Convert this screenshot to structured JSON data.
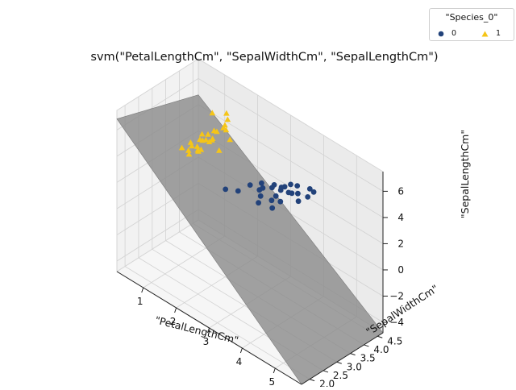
{
  "chart_data": {
    "type": "scatter",
    "title": "svm(\"PetalLengthCm\", \"SepalWidthCm\", \"SepalLengthCm\")",
    "projection": "3d",
    "xlabel": "\"PetalLengthCm\"",
    "ylabel": "\"SepalWidthCm\"",
    "zlabel": "\"SepalLengthCm\"",
    "xlim": [
      0.2,
      5.8
    ],
    "ylim": [
      1.7,
      4.7
    ],
    "zlim": [
      -4.8,
      7.5
    ],
    "xticks": [
      "1",
      "2",
      "3",
      "4",
      "5"
    ],
    "yticks": [
      "2.0",
      "2.5",
      "3.0",
      "3.5",
      "4.0",
      "4.5"
    ],
    "zticks": [
      "−4",
      "−2",
      "0",
      "2",
      "4",
      "6"
    ],
    "grid": true,
    "legend": {
      "title": "\"Species_0\"",
      "placement": "top-right outside",
      "entries": [
        "0",
        "1"
      ]
    },
    "decision_surface": {
      "label": "",
      "color": "#8c8c8c",
      "z_formula": "8.5 - 2.3*x - 0.7*y"
    },
    "series": [
      {
        "name": "0",
        "marker": "circle",
        "color": "#22427a",
        "points": [
          [
            3.0,
            2.3,
            5.0
          ],
          [
            3.3,
            2.4,
            5.2
          ],
          [
            3.5,
            2.6,
            5.7
          ],
          [
            3.6,
            2.9,
            5.6
          ],
          [
            3.7,
            2.7,
            5.5
          ],
          [
            3.8,
            2.7,
            5.8
          ],
          [
            3.9,
            2.5,
            5.6
          ],
          [
            3.9,
            3.0,
            5.8
          ],
          [
            4.0,
            2.3,
            5.5
          ],
          [
            4.0,
            2.8,
            6.0
          ],
          [
            4.1,
            3.0,
            5.7
          ],
          [
            4.2,
            2.7,
            5.8
          ],
          [
            4.2,
            2.9,
            6.2
          ],
          [
            4.3,
            2.9,
            6.4
          ],
          [
            4.4,
            2.3,
            6.3
          ],
          [
            4.4,
            3.0,
            6.6
          ],
          [
            4.5,
            2.2,
            6.0
          ],
          [
            4.5,
            2.5,
            6.1
          ],
          [
            4.5,
            2.8,
            6.4
          ],
          [
            4.6,
            2.8,
            6.5
          ],
          [
            4.6,
            3.0,
            6.8
          ],
          [
            4.7,
            2.9,
            6.5
          ],
          [
            4.8,
            2.8,
            6.2
          ],
          [
            4.9,
            3.1,
            6.9
          ],
          [
            5.0,
            2.9,
            6.7
          ],
          [
            5.1,
            3.0,
            7.1
          ]
        ]
      },
      {
        "name": "1",
        "marker": "triangle",
        "color": "#f5c518",
        "points": [
          [
            1.1,
            3.0,
            4.3
          ],
          [
            1.2,
            3.2,
            4.6
          ],
          [
            1.3,
            3.0,
            4.4
          ],
          [
            1.3,
            3.5,
            5.0
          ],
          [
            1.4,
            2.9,
            4.4
          ],
          [
            1.4,
            3.2,
            4.6
          ],
          [
            1.4,
            3.4,
            4.8
          ],
          [
            1.4,
            3.6,
            5.0
          ],
          [
            1.5,
            3.1,
            4.6
          ],
          [
            1.5,
            3.4,
            5.0
          ],
          [
            1.5,
            3.7,
            5.3
          ],
          [
            1.6,
            3.1,
            4.8
          ],
          [
            1.6,
            3.4,
            5.0
          ],
          [
            1.7,
            3.4,
            5.4
          ],
          [
            1.7,
            3.8,
            5.7
          ],
          [
            1.9,
            3.8,
            5.1
          ],
          [
            1.3,
            4.4,
            5.4
          ],
          [
            1.5,
            4.2,
            5.5
          ],
          [
            1.5,
            4.1,
            5.2
          ],
          [
            1.6,
            3.0,
            4.8
          ],
          [
            1.4,
            3.0,
            4.9
          ],
          [
            1.5,
            3.8,
            5.1
          ],
          [
            1.7,
            3.9,
            5.4
          ],
          [
            1.4,
            3.3,
            5.0
          ],
          [
            1.6,
            3.5,
            5.0
          ],
          [
            1.2,
            4.0,
            5.8
          ],
          [
            1.9,
            3.4,
            4.8
          ]
        ]
      }
    ]
  }
}
